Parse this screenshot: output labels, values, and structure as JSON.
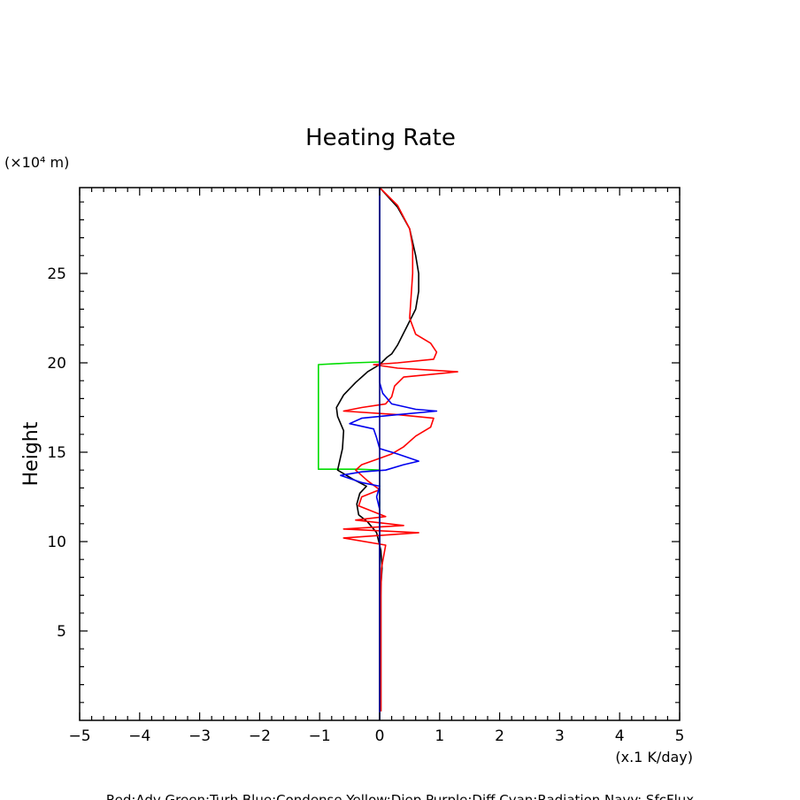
{
  "chart_data": {
    "type": "line",
    "title": "Heating Rate",
    "ylabel": "Height",
    "yunit": "(×10⁴ m)",
    "xunit": "(x.1 K/day)",
    "legend_text": "Red:Adv  Green:Turb  Blue:Condense  Yellow:Diep  Purple:Diff  Cyan:Radiation  Navy: SfcFlux",
    "xlim": [
      -5,
      5
    ],
    "ylim": [
      0,
      29.8
    ],
    "x_ticks": [
      -5,
      -4,
      -3,
      -2,
      -1,
      0,
      1,
      2,
      3,
      4,
      5
    ],
    "x_tick_labels": [
      "−5",
      "−4",
      "−3",
      "−2",
      "−1",
      "0",
      "1",
      "2",
      "3",
      "4",
      "5"
    ],
    "y_ticks": [
      5,
      10,
      15,
      20,
      25
    ],
    "y_tick_labels": [
      "5",
      "10",
      "15",
      "20",
      "25"
    ],
    "grid": false,
    "series": [
      {
        "color": "#00dd00",
        "points": [
          [
            0,
            0
          ],
          [
            0,
            14
          ],
          [
            -0.35,
            14.05
          ],
          [
            -1.02,
            14.05
          ],
          [
            -1.02,
            19.9
          ],
          [
            -0.45,
            20
          ],
          [
            0,
            20.05
          ],
          [
            0,
            29.8
          ]
        ]
      },
      {
        "color": "#000000",
        "points": [
          [
            0.02,
            0.5
          ],
          [
            0.02,
            7.5
          ],
          [
            0.04,
            8.5
          ],
          [
            0.02,
            9.5
          ],
          [
            -0.05,
            10.5
          ],
          [
            -0.2,
            11.1
          ],
          [
            -0.35,
            11.5
          ],
          [
            -0.38,
            12.1
          ],
          [
            -0.33,
            12.7
          ],
          [
            -0.22,
            13.1
          ],
          [
            -0.45,
            13.5
          ],
          [
            -0.7,
            14
          ],
          [
            -0.62,
            15.2
          ],
          [
            -0.6,
            16.2
          ],
          [
            -0.7,
            17
          ],
          [
            -0.72,
            17.5
          ],
          [
            -0.6,
            18.2
          ],
          [
            -0.4,
            18.9
          ],
          [
            -0.2,
            19.5
          ],
          [
            0,
            19.9
          ],
          [
            0.12,
            20.3
          ],
          [
            0.2,
            20.5
          ],
          [
            0.3,
            21
          ],
          [
            0.45,
            22
          ],
          [
            0.6,
            23
          ],
          [
            0.65,
            24
          ],
          [
            0.65,
            25
          ],
          [
            0.6,
            26
          ],
          [
            0.5,
            27.5
          ],
          [
            0.3,
            28.7
          ],
          [
            0,
            29.8
          ]
        ]
      },
      {
        "color": "#ff0000",
        "points": [
          [
            0.02,
            0.5
          ],
          [
            0.02,
            7
          ],
          [
            0.03,
            8.5
          ],
          [
            0.1,
            9.8
          ],
          [
            -0.6,
            10.2
          ],
          [
            0.65,
            10.5
          ],
          [
            -0.6,
            10.7
          ],
          [
            0.4,
            10.9
          ],
          [
            -0.4,
            11.2
          ],
          [
            0.1,
            11.4
          ],
          [
            -0.35,
            12
          ],
          [
            -0.3,
            12.5
          ],
          [
            0,
            12.9
          ],
          [
            -0.2,
            13.4
          ],
          [
            -0.4,
            14
          ],
          [
            -0.3,
            14.3
          ],
          [
            -0.05,
            14.6
          ],
          [
            0.2,
            14.9
          ],
          [
            0.4,
            15.3
          ],
          [
            0.6,
            15.9
          ],
          [
            0.85,
            16.4
          ],
          [
            0.9,
            16.9
          ],
          [
            0.6,
            17
          ],
          [
            0.3,
            17.1
          ],
          [
            -0.6,
            17.3
          ],
          [
            -0.3,
            17.5
          ],
          [
            0.1,
            17.7
          ],
          [
            0.2,
            18.1
          ],
          [
            0.25,
            18.7
          ],
          [
            0.4,
            19.2
          ],
          [
            1.3,
            19.5
          ],
          [
            0.3,
            19.7
          ],
          [
            -0.1,
            19.9
          ],
          [
            0.3,
            20
          ],
          [
            0.9,
            20.2
          ],
          [
            0.95,
            20.6
          ],
          [
            0.85,
            21.1
          ],
          [
            0.6,
            21.6
          ],
          [
            0.5,
            22.5
          ],
          [
            0.55,
            25
          ],
          [
            0.55,
            26.5
          ],
          [
            0.5,
            27.5
          ],
          [
            0.3,
            28.8
          ],
          [
            0,
            29.8
          ]
        ]
      },
      {
        "color": "#0000ee",
        "points": [
          [
            0,
            0
          ],
          [
            0,
            11.8
          ],
          [
            -0.05,
            12.5
          ],
          [
            0,
            13.1
          ],
          [
            -0.3,
            13.3
          ],
          [
            -0.65,
            13.7
          ],
          [
            -0.3,
            13.9
          ],
          [
            0.1,
            14
          ],
          [
            0.4,
            14.3
          ],
          [
            0.65,
            14.5
          ],
          [
            0.3,
            14.9
          ],
          [
            0,
            15.2
          ],
          [
            -0.05,
            15.8
          ],
          [
            -0.1,
            16.3
          ],
          [
            -0.5,
            16.6
          ],
          [
            -0.3,
            16.9
          ],
          [
            0.3,
            17.1
          ],
          [
            0.95,
            17.3
          ],
          [
            0.6,
            17.4
          ],
          [
            0.2,
            17.7
          ],
          [
            0.05,
            18.3
          ],
          [
            0,
            18.9
          ],
          [
            0,
            29.8
          ]
        ]
      },
      {
        "color": "#000080",
        "points": [
          [
            0,
            0
          ],
          [
            0,
            29.8
          ]
        ]
      }
    ]
  }
}
